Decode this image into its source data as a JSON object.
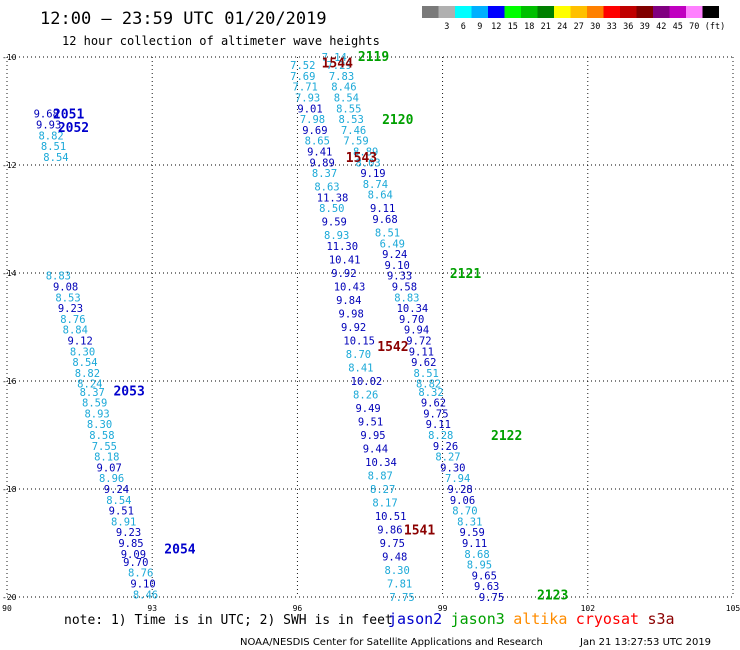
{
  "title": "12:00 – 23:59 UTC 01/20/2019",
  "subtitle": "12 hour collection of altimeter wave heights",
  "axes": {
    "lat_ticks": [
      -10,
      -12,
      -14,
      -16,
      -18,
      -20
    ],
    "lon_ticks": [
      90,
      93,
      96,
      99,
      102,
      105
    ],
    "lon_min": 90,
    "lon_max": 105,
    "lat_min": -20,
    "lat_max": -10
  },
  "legend": {
    "unit": "(ft)",
    "bins": [
      {
        "label": "",
        "color": "#7a7a7a"
      },
      {
        "label": "3",
        "color": "#b0b0b0"
      },
      {
        "label": "6",
        "color": "#00ffff"
      },
      {
        "label": "9",
        "color": "#00b0ff"
      },
      {
        "label": "12",
        "color": "#0000ff"
      },
      {
        "label": "15",
        "color": "#00ff00"
      },
      {
        "label": "18",
        "color": "#00c000"
      },
      {
        "label": "21",
        "color": "#008000"
      },
      {
        "label": "24",
        "color": "#ffff00"
      },
      {
        "label": "27",
        "color": "#ffc000"
      },
      {
        "label": "30",
        "color": "#ff8000"
      },
      {
        "label": "33",
        "color": "#ff0000"
      },
      {
        "label": "36",
        "color": "#c00000"
      },
      {
        "label": "39",
        "color": "#800000"
      },
      {
        "label": "42",
        "color": "#800080"
      },
      {
        "label": "45",
        "color": "#c000c0"
      },
      {
        "label": "70",
        "color": "#ff80ff"
      },
      {
        "label": "",
        "color": "#000000"
      }
    ]
  },
  "colors": {
    "light": "#1ca9d8",
    "dark": "#0000b8",
    "jason2": "#0000cc",
    "jason3": "#00a000",
    "altika": "#ff8c00",
    "cryosat": "#ff0000",
    "s3a": "#8b0000"
  },
  "passes": [
    {
      "label": "2051",
      "lon": 90.95,
      "lat": -11.05,
      "color": "#0000cc"
    },
    {
      "label": "2052",
      "lon": 91.05,
      "lat": -11.3,
      "color": "#0000cc"
    },
    {
      "label": "2053",
      "lon": 92.2,
      "lat": -16.18,
      "color": "#0000cc"
    },
    {
      "label": "2054",
      "lon": 93.25,
      "lat": -19.1,
      "color": "#0000cc"
    },
    {
      "label": "2119",
      "lon": 97.25,
      "lat": -9.98,
      "color": "#00a000"
    },
    {
      "label": "2120",
      "lon": 97.75,
      "lat": -11.15,
      "color": "#00a000"
    },
    {
      "label": "2121",
      "lon": 99.15,
      "lat": -14.0,
      "color": "#00a000"
    },
    {
      "label": "2122",
      "lon": 100.0,
      "lat": -17.0,
      "color": "#00a000"
    },
    {
      "label": "2123",
      "lon": 100.95,
      "lat": -19.95,
      "color": "#00a000"
    },
    {
      "label": "1544",
      "lon": 96.5,
      "lat": -10.1,
      "color": "#8b0000"
    },
    {
      "label": "1543",
      "lon": 97.0,
      "lat": -11.85,
      "color": "#8b0000"
    },
    {
      "label": "1542",
      "lon": 97.65,
      "lat": -15.35,
      "color": "#8b0000"
    },
    {
      "label": "1541",
      "lon": 98.2,
      "lat": -18.75,
      "color": "#8b0000"
    }
  ],
  "tracks": [
    {
      "name": "jason2-2051-2054",
      "values": [
        {
          "v": "9.68",
          "lon": 90.55,
          "lat": -11.05,
          "c": "d"
        },
        {
          "v": "9.93",
          "lon": 90.6,
          "lat": -11.25,
          "c": "d"
        },
        {
          "v": "8.82",
          "lon": 90.65,
          "lat": -11.45,
          "c": "l"
        },
        {
          "v": "8.51",
          "lon": 90.7,
          "lat": -11.65,
          "c": "l"
        },
        {
          "v": "8.54",
          "lon": 90.75,
          "lat": -11.85,
          "c": "l"
        },
        {
          "v": "8.83",
          "lon": 90.8,
          "lat": -14.05,
          "c": "l"
        },
        {
          "v": "9.08",
          "lon": 90.95,
          "lat": -14.25,
          "c": "d"
        },
        {
          "v": "8.53",
          "lon": 91.0,
          "lat": -14.45,
          "c": "l"
        },
        {
          "v": "9.23",
          "lon": 91.05,
          "lat": -14.65,
          "c": "d"
        },
        {
          "v": "8.76",
          "lon": 91.1,
          "lat": -14.85,
          "c": "l"
        },
        {
          "v": "8.84",
          "lon": 91.15,
          "lat": -15.05,
          "c": "l"
        },
        {
          "v": "9.12",
          "lon": 91.25,
          "lat": -15.25,
          "c": "d"
        },
        {
          "v": "8.30",
          "lon": 91.3,
          "lat": -15.45,
          "c": "l"
        },
        {
          "v": "8.54",
          "lon": 91.35,
          "lat": -15.65,
          "c": "l"
        },
        {
          "v": "8.82",
          "lon": 91.4,
          "lat": -15.85,
          "c": "l"
        },
        {
          "v": "8.24",
          "lon": 91.45,
          "lat": -16.05,
          "c": "l"
        },
        {
          "v": "8.37",
          "lon": 91.5,
          "lat": -16.2,
          "c": "l"
        },
        {
          "v": "8.59",
          "lon": 91.55,
          "lat": -16.4,
          "c": "l"
        },
        {
          "v": "8.93",
          "lon": 91.6,
          "lat": -16.6,
          "c": "l"
        },
        {
          "v": "8.30",
          "lon": 91.65,
          "lat": -16.8,
          "c": "l"
        },
        {
          "v": "8.58",
          "lon": 91.7,
          "lat": -17.0,
          "c": "l"
        },
        {
          "v": "7.55",
          "lon": 91.75,
          "lat": -17.2,
          "c": "l"
        },
        {
          "v": "8.18",
          "lon": 91.8,
          "lat": -17.4,
          "c": "l"
        },
        {
          "v": "9.07",
          "lon": 91.85,
          "lat": -17.6,
          "c": "d"
        },
        {
          "v": "8.96",
          "lon": 91.9,
          "lat": -17.8,
          "c": "l"
        },
        {
          "v": "9.24",
          "lon": 92.0,
          "lat": -18.0,
          "c": "d"
        },
        {
          "v": "8.54",
          "lon": 92.05,
          "lat": -18.2,
          "c": "l"
        },
        {
          "v": "9.51",
          "lon": 92.1,
          "lat": -18.4,
          "c": "d"
        },
        {
          "v": "8.91",
          "lon": 92.15,
          "lat": -18.6,
          "c": "l"
        },
        {
          "v": "9.23",
          "lon": 92.25,
          "lat": -18.8,
          "c": "d"
        },
        {
          "v": "9.85",
          "lon": 92.3,
          "lat": -19.0,
          "c": "d"
        },
        {
          "v": "9.09",
          "lon": 92.35,
          "lat": -19.2,
          "c": "d"
        },
        {
          "v": "9.70",
          "lon": 92.4,
          "lat": -19.35,
          "c": "d"
        },
        {
          "v": "8.76",
          "lon": 92.5,
          "lat": -19.55,
          "c": "l"
        },
        {
          "v": "9.10",
          "lon": 92.55,
          "lat": -19.75,
          "c": "d"
        },
        {
          "v": "8.46",
          "lon": 92.6,
          "lat": -19.95,
          "c": "l"
        }
      ]
    },
    {
      "name": "s3a-1542-1544",
      "values": [
        {
          "v": "7.52",
          "lon": 95.85,
          "lat": -10.15,
          "c": "l"
        },
        {
          "v": "7.69",
          "lon": 95.85,
          "lat": -10.35,
          "c": "l"
        },
        {
          "v": "7.71",
          "lon": 95.9,
          "lat": -10.55,
          "c": "l"
        },
        {
          "v": "7.93",
          "lon": 95.95,
          "lat": -10.75,
          "c": "l"
        },
        {
          "v": "9.01",
          "lon": 96.0,
          "lat": -10.95,
          "c": "d"
        },
        {
          "v": "7.98",
          "lon": 96.05,
          "lat": -11.15,
          "c": "l"
        },
        {
          "v": "9.69",
          "lon": 96.1,
          "lat": -11.35,
          "c": "d"
        },
        {
          "v": "8.65",
          "lon": 96.15,
          "lat": -11.55,
          "c": "l"
        },
        {
          "v": "9.41",
          "lon": 96.2,
          "lat": -11.75,
          "c": "d"
        },
        {
          "v": "9.89",
          "lon": 96.25,
          "lat": -11.95,
          "c": "d"
        },
        {
          "v": "8.37",
          "lon": 96.3,
          "lat": -12.15,
          "c": "l"
        },
        {
          "v": "8.63",
          "lon": 96.35,
          "lat": -12.4,
          "c": "l"
        },
        {
          "v": "11.38",
          "lon": 96.4,
          "lat": -12.6,
          "c": "d"
        },
        {
          "v": "8.50",
          "lon": 96.45,
          "lat": -12.8,
          "c": "l"
        },
        {
          "v": "9.59",
          "lon": 96.5,
          "lat": -13.05,
          "c": "d"
        },
        {
          "v": "8.93",
          "lon": 96.55,
          "lat": -13.3,
          "c": "l"
        },
        {
          "v": "11.30",
          "lon": 96.6,
          "lat": -13.5,
          "c": "d"
        },
        {
          "v": "10.41",
          "lon": 96.65,
          "lat": -13.75,
          "c": "d"
        },
        {
          "v": "9.92",
          "lon": 96.7,
          "lat": -14.0,
          "c": "d"
        },
        {
          "v": "10.43",
          "lon": 96.75,
          "lat": -14.25,
          "c": "d"
        },
        {
          "v": "9.84",
          "lon": 96.8,
          "lat": -14.5,
          "c": "d"
        },
        {
          "v": "9.98",
          "lon": 96.85,
          "lat": -14.75,
          "c": "d"
        },
        {
          "v": "9.92",
          "lon": 96.9,
          "lat": -15.0,
          "c": "d"
        },
        {
          "v": "10.15",
          "lon": 96.95,
          "lat": -15.25,
          "c": "d"
        },
        {
          "v": "8.70",
          "lon": 97.0,
          "lat": -15.5,
          "c": "l"
        },
        {
          "v": "8.41",
          "lon": 97.05,
          "lat": -15.75,
          "c": "l"
        },
        {
          "v": "10.02",
          "lon": 97.1,
          "lat": -16.0,
          "c": "d"
        },
        {
          "v": "8.26",
          "lon": 97.15,
          "lat": -16.25,
          "c": "l"
        },
        {
          "v": "9.49",
          "lon": 97.2,
          "lat": -16.5,
          "c": "d"
        },
        {
          "v": "9.51",
          "lon": 97.25,
          "lat": -16.75,
          "c": "d"
        },
        {
          "v": "9.95",
          "lon": 97.3,
          "lat": -17.0,
          "c": "d"
        },
        {
          "v": "9.44",
          "lon": 97.35,
          "lat": -17.25,
          "c": "d"
        },
        {
          "v": "10.34",
          "lon": 97.4,
          "lat": -17.5,
          "c": "d"
        },
        {
          "v": "8.87",
          "lon": 97.45,
          "lat": -17.75,
          "c": "l"
        },
        {
          "v": "8.27",
          "lon": 97.5,
          "lat": -18.0,
          "c": "l"
        },
        {
          "v": "8.17",
          "lon": 97.55,
          "lat": -18.25,
          "c": "l"
        },
        {
          "v": "10.51",
          "lon": 97.6,
          "lat": -18.5,
          "c": "d"
        },
        {
          "v": "9.86",
          "lon": 97.65,
          "lat": -18.75,
          "c": "d"
        },
        {
          "v": "9.75",
          "lon": 97.7,
          "lat": -19.0,
          "c": "d"
        },
        {
          "v": "9.48",
          "lon": 97.75,
          "lat": -19.25,
          "c": "d"
        },
        {
          "v": "8.30",
          "lon": 97.8,
          "lat": -19.5,
          "c": "l"
        },
        {
          "v": "7.81",
          "lon": 97.85,
          "lat": -19.75,
          "c": "l"
        },
        {
          "v": "7.75",
          "lon": 97.9,
          "lat": -20.0,
          "c": "l"
        }
      ]
    },
    {
      "name": "jason3-2119-2123",
      "values": [
        {
          "v": "7.14",
          "lon": 96.5,
          "lat": -10.0,
          "c": "l"
        },
        {
          "v": "7.29",
          "lon": 96.6,
          "lat": -10.15,
          "c": "l"
        },
        {
          "v": "7.83",
          "lon": 96.65,
          "lat": -10.35,
          "c": "l"
        },
        {
          "v": "8.46",
          "lon": 96.7,
          "lat": -10.55,
          "c": "l"
        },
        {
          "v": "8.54",
          "lon": 96.75,
          "lat": -10.75,
          "c": "l"
        },
        {
          "v": "8.55",
          "lon": 96.8,
          "lat": -10.95,
          "c": "l"
        },
        {
          "v": "8.53",
          "lon": 96.85,
          "lat": -11.15,
          "c": "l"
        },
        {
          "v": "7.46",
          "lon": 96.9,
          "lat": -11.35,
          "c": "l"
        },
        {
          "v": "7.59",
          "lon": 96.95,
          "lat": -11.55,
          "c": "l"
        },
        {
          "v": "8.89",
          "lon": 97.15,
          "lat": -11.75,
          "c": "l"
        },
        {
          "v": "8.03",
          "lon": 97.2,
          "lat": -11.95,
          "c": "l"
        },
        {
          "v": "9.19",
          "lon": 97.3,
          "lat": -12.15,
          "c": "d"
        },
        {
          "v": "8.74",
          "lon": 97.35,
          "lat": -12.35,
          "c": "l"
        },
        {
          "v": "8.64",
          "lon": 97.45,
          "lat": -12.55,
          "c": "l"
        },
        {
          "v": "9.11",
          "lon": 97.5,
          "lat": -12.8,
          "c": "d"
        },
        {
          "v": "9.68",
          "lon": 97.55,
          "lat": -13.0,
          "c": "d"
        },
        {
          "v": "8.51",
          "lon": 97.6,
          "lat": -13.25,
          "c": "l"
        },
        {
          "v": "6.49",
          "lon": 97.7,
          "lat": -13.45,
          "c": "l"
        },
        {
          "v": "9.24",
          "lon": 97.75,
          "lat": -13.65,
          "c": "d"
        },
        {
          "v": "9.10",
          "lon": 97.8,
          "lat": -13.85,
          "c": "d"
        },
        {
          "v": "9.33",
          "lon": 97.85,
          "lat": -14.05,
          "c": "d"
        },
        {
          "v": "9.58",
          "lon": 97.95,
          "lat": -14.25,
          "c": "d"
        },
        {
          "v": "8.83",
          "lon": 98.0,
          "lat": -14.45,
          "c": "l"
        },
        {
          "v": "10.34",
          "lon": 98.05,
          "lat": -14.65,
          "c": "d"
        },
        {
          "v": "9.70",
          "lon": 98.1,
          "lat": -14.85,
          "c": "d"
        },
        {
          "v": "9.94",
          "lon": 98.2,
          "lat": -15.05,
          "c": "d"
        },
        {
          "v": "9.72",
          "lon": 98.25,
          "lat": -15.25,
          "c": "d"
        },
        {
          "v": "9.11",
          "lon": 98.3,
          "lat": -15.45,
          "c": "d"
        },
        {
          "v": "9.62",
          "lon": 98.35,
          "lat": -15.65,
          "c": "d"
        },
        {
          "v": "8.51",
          "lon": 98.4,
          "lat": -15.85,
          "c": "l"
        },
        {
          "v": "8.82",
          "lon": 98.45,
          "lat": -16.05,
          "c": "l"
        },
        {
          "v": "8.32",
          "lon": 98.5,
          "lat": -16.2,
          "c": "l"
        },
        {
          "v": "9.62",
          "lon": 98.55,
          "lat": -16.4,
          "c": "d"
        },
        {
          "v": "9.75",
          "lon": 98.6,
          "lat": -16.6,
          "c": "d"
        },
        {
          "v": "9.11",
          "lon": 98.65,
          "lat": -16.8,
          "c": "d"
        },
        {
          "v": "8.28",
          "lon": 98.7,
          "lat": -17.0,
          "c": "l"
        },
        {
          "v": "9.26",
          "lon": 98.8,
          "lat": -17.2,
          "c": "d"
        },
        {
          "v": "8.27",
          "lon": 98.85,
          "lat": -17.4,
          "c": "l"
        },
        {
          "v": "9.30",
          "lon": 98.95,
          "lat": -17.6,
          "c": "d"
        },
        {
          "v": "7.94",
          "lon": 99.05,
          "lat": -17.8,
          "c": "l"
        },
        {
          "v": "9.28",
          "lon": 99.1,
          "lat": -18.0,
          "c": "d"
        },
        {
          "v": "9.06",
          "lon": 99.15,
          "lat": -18.2,
          "c": "d"
        },
        {
          "v": "8.70",
          "lon": 99.2,
          "lat": -18.4,
          "c": "l"
        },
        {
          "v": "8.31",
          "lon": 99.3,
          "lat": -18.6,
          "c": "l"
        },
        {
          "v": "9.59",
          "lon": 99.35,
          "lat": -18.8,
          "c": "d"
        },
        {
          "v": "9.11",
          "lon": 99.4,
          "lat": -19.0,
          "c": "d"
        },
        {
          "v": "8.68",
          "lon": 99.45,
          "lat": -19.2,
          "c": "l"
        },
        {
          "v": "8.95",
          "lon": 99.5,
          "lat": -19.4,
          "c": "l"
        },
        {
          "v": "9.65",
          "lon": 99.6,
          "lat": -19.6,
          "c": "d"
        },
        {
          "v": "9.63",
          "lon": 99.65,
          "lat": -19.8,
          "c": "d"
        },
        {
          "v": "9.75",
          "lon": 99.75,
          "lat": -20.0,
          "c": "d"
        }
      ]
    }
  ],
  "note": "note: 1) Time is in UTC; 2) SWH is in feet",
  "satellites": [
    {
      "name": "jason2",
      "color": "#0000cc"
    },
    {
      "name": "jason3",
      "color": "#00a000"
    },
    {
      "name": "altika",
      "color": "#ff8c00"
    },
    {
      "name": "cryosat",
      "color": "#ff0000"
    },
    {
      "name": "s3a",
      "color": "#8b0000"
    }
  ],
  "footer_left": "NOAA/NESDIS Center for Satellite Applications and Research",
  "footer_right": "Jan 21 13:27:53 UTC 2019"
}
